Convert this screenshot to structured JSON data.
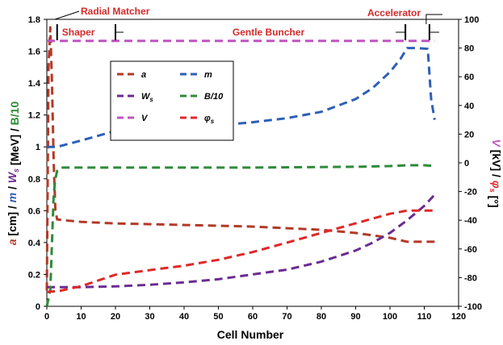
{
  "chart_data": {
    "type": "line",
    "xlabel": "Cell Number",
    "ylabel_left_parts": [
      {
        "text": "a",
        "color": "#B23A28",
        "italic": true
      },
      {
        "text": " [cm] / ",
        "color": "#000000",
        "italic": false
      },
      {
        "text": "m",
        "color": "#2E5FB8",
        "italic": true
      },
      {
        "text": " / ",
        "color": "#000000",
        "italic": false
      },
      {
        "text": "W",
        "color": "#6B2C91",
        "italic": true
      },
      {
        "text": "s",
        "color": "#6B2C91",
        "italic": true,
        "sub": true
      },
      {
        "text": " [MeV] / ",
        "color": "#000000",
        "italic": false
      },
      {
        "text": "B/10",
        "color": "#2E8B3A",
        "italic": false
      }
    ],
    "ylabel_right_parts": [
      {
        "text": "V",
        "color": "#C054C0",
        "italic": true
      },
      {
        "text": " [kV] / ",
        "color": "#000000",
        "italic": false
      },
      {
        "text": "φ",
        "color": "#E02828",
        "italic": true
      },
      {
        "text": "s",
        "color": "#E02828",
        "italic": true,
        "sub": true
      },
      {
        "text": " [°]",
        "color": "#000000",
        "italic": false
      }
    ],
    "xlim": [
      0,
      120
    ],
    "ylim_left": [
      0,
      1.8
    ],
    "ylim_right": [
      -100,
      100
    ],
    "xticks": [
      0,
      10,
      20,
      30,
      40,
      50,
      60,
      70,
      80,
      90,
      100,
      110,
      120
    ],
    "yticks_left": [
      0,
      0.2,
      0.4,
      0.6,
      0.8,
      1,
      1.2,
      1.4,
      1.6,
      1.8
    ],
    "yticks_right": [
      -100,
      -80,
      -60,
      -40,
      -20,
      0,
      20,
      40,
      60,
      80,
      100
    ],
    "legend_position": "upper-left-inside",
    "series": [
      {
        "name": "a",
        "axis": "left",
        "color": "#B23A28",
        "x": [
          0,
          0.5,
          1,
          1.5,
          2,
          2.5,
          3,
          5,
          10,
          20,
          30,
          40,
          50,
          60,
          70,
          80,
          90,
          100,
          105,
          110,
          113
        ],
        "y": [
          0.1,
          1.5,
          1.75,
          1.4,
          0.9,
          0.6,
          0.545,
          0.54,
          0.53,
          0.52,
          0.515,
          0.51,
          0.505,
          0.5,
          0.49,
          0.48,
          0.46,
          0.43,
          0.405,
          0.405,
          0.405
        ]
      },
      {
        "name": "m",
        "axis": "left",
        "color": "#2E5FB8",
        "x": [
          0,
          3,
          10,
          20,
          30,
          40,
          50,
          60,
          70,
          80,
          90,
          95,
          100,
          103,
          105,
          108,
          111,
          112,
          113
        ],
        "y": [
          1.0,
          1.0,
          1.04,
          1.1,
          1.115,
          1.125,
          1.135,
          1.155,
          1.18,
          1.22,
          1.3,
          1.37,
          1.47,
          1.55,
          1.62,
          1.62,
          1.615,
          1.3,
          1.17
        ]
      },
      {
        "name": "W_s",
        "label_main": "W",
        "label_sub": "s",
        "axis": "left",
        "color": "#6B2C91",
        "x": [
          0,
          10,
          20,
          30,
          40,
          50,
          60,
          70,
          80,
          90,
          95,
          100,
          105,
          110,
          113
        ],
        "y": [
          0.12,
          0.12,
          0.125,
          0.135,
          0.15,
          0.17,
          0.2,
          0.23,
          0.28,
          0.35,
          0.4,
          0.46,
          0.54,
          0.63,
          0.7
        ]
      },
      {
        "name": "B/10",
        "axis": "left",
        "color": "#2E8B3A",
        "x": [
          0,
          1,
          1.5,
          2,
          2.5,
          3,
          4,
          10,
          30,
          60,
          90,
          100,
          105,
          110,
          113
        ],
        "y": [
          0.0,
          0.1,
          0.4,
          0.7,
          0.8,
          0.85,
          0.87,
          0.87,
          0.87,
          0.87,
          0.875,
          0.88,
          0.885,
          0.885,
          0.88
        ]
      },
      {
        "name": "V",
        "axis": "right",
        "color": "#C054C0",
        "x": [
          0,
          113
        ],
        "y": [
          85,
          85
        ]
      },
      {
        "name": "φ_s",
        "label_main": "φ",
        "label_sub": "s",
        "axis": "right",
        "color": "#E02828",
        "x": [
          0,
          1,
          2,
          3,
          4,
          10,
          20,
          30,
          40,
          50,
          60,
          70,
          80,
          90,
          100,
          105,
          110,
          113
        ],
        "y": [
          -90,
          -89.8,
          -89.6,
          -89.3,
          -89.1,
          -86,
          -78,
          -74.8,
          -71.7,
          -67.6,
          -62.2,
          -55.6,
          -48.8,
          -42.2,
          -35.5,
          -33.3,
          -33.3,
          -33.3
        ]
      }
    ],
    "annotations": {
      "radial_matcher": "Radial Matcher",
      "shaper": "Shaper",
      "gentle_buncher": "Gentle Buncher",
      "accelerator": "Accelerator"
    },
    "section_markers_x": [
      0,
      3,
      20,
      104.5,
      111.5
    ],
    "annotation_color": "#D42A2A"
  }
}
